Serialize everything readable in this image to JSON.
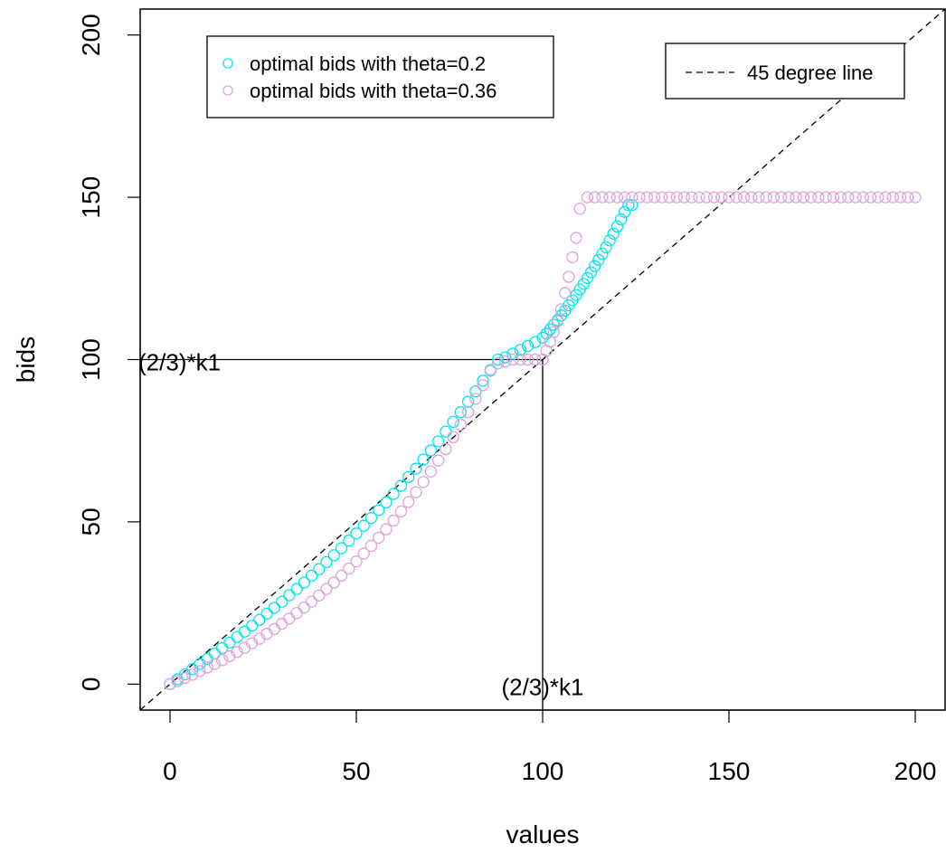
{
  "chart_data": {
    "type": "scatter",
    "xlabel": "values",
    "ylabel": "bids",
    "xlim": [
      -8,
      208
    ],
    "ylim": [
      -8,
      208
    ],
    "xticks": [
      0,
      50,
      100,
      150,
      200
    ],
    "yticks": [
      0,
      50,
      100,
      150,
      200
    ],
    "xtick_labels": [
      "0",
      "50",
      "100",
      "150",
      "200"
    ],
    "ytick_labels": [
      "0",
      "50",
      "100",
      "150",
      "200"
    ],
    "grid": false,
    "series": [
      {
        "name": "optimal bids with theta=0.2",
        "color": "#00e5ee",
        "marker": "open-circle",
        "x": [
          0,
          2,
          4,
          6,
          8,
          10,
          12,
          14,
          16,
          18,
          20,
          22,
          24,
          26,
          28,
          30,
          32,
          34,
          36,
          38,
          40,
          42,
          44,
          46,
          48,
          50,
          52,
          54,
          56,
          58,
          60,
          62,
          64,
          66,
          68,
          70,
          72,
          74,
          76,
          78,
          80,
          82,
          84,
          86,
          88,
          90,
          92,
          94,
          96,
          98,
          100,
          101,
          102,
          103,
          104,
          105,
          106,
          107,
          108,
          109,
          110,
          111,
          112,
          113,
          114,
          115,
          116,
          117,
          118,
          119,
          120,
          121,
          122,
          123,
          124
        ],
        "y": [
          0.0,
          1.5,
          3.0,
          4.6,
          6.2,
          7.8,
          9.4,
          11.1,
          12.8,
          14.5,
          16.2,
          18.0,
          19.8,
          21.7,
          23.5,
          25.4,
          27.4,
          29.3,
          31.3,
          33.4,
          35.4,
          37.6,
          39.7,
          41.9,
          44.2,
          46.4,
          48.8,
          51.2,
          53.6,
          56.0,
          58.6,
          61.1,
          63.8,
          66.4,
          69.2,
          72.0,
          74.8,
          77.8,
          80.8,
          83.8,
          87.0,
          90.2,
          93.5,
          96.8,
          100.0,
          100.7,
          101.8,
          103.0,
          104.2,
          105.4,
          106.7,
          108.0,
          109.3,
          110.7,
          112.1,
          113.6,
          115.1,
          116.7,
          118.3,
          119.9,
          121.6,
          123.3,
          125.1,
          126.9,
          128.8,
          130.7,
          132.6,
          134.6,
          136.7,
          138.8,
          141.0,
          143.2,
          145.5,
          147.6,
          147.6
        ],
        "x_note": ""
      },
      {
        "name": "optimal bids with theta=0.36",
        "color": "#dda0dd",
        "marker": "open-circle",
        "x": [
          0,
          2,
          4,
          6,
          8,
          10,
          12,
          14,
          16,
          18,
          20,
          22,
          24,
          26,
          28,
          30,
          32,
          34,
          36,
          38,
          40,
          42,
          44,
          46,
          48,
          50,
          52,
          54,
          56,
          58,
          60,
          62,
          64,
          66,
          68,
          70,
          72,
          74,
          76,
          78,
          80,
          82,
          84,
          86,
          88,
          90,
          92,
          94,
          96,
          98,
          100,
          101,
          102,
          103,
          104,
          105,
          106,
          107,
          108,
          109,
          110,
          112,
          114,
          116,
          118,
          120,
          122,
          124,
          126,
          128,
          130,
          132,
          134,
          136,
          138,
          140,
          142,
          144,
          146,
          148,
          150,
          152,
          154,
          156,
          158,
          160,
          162,
          164,
          166,
          168,
          170,
          172,
          174,
          176,
          178,
          180,
          182,
          184,
          186,
          188,
          190,
          192,
          194,
          196,
          198,
          200
        ],
        "y": [
          0.0,
          0.9,
          1.9,
          2.9,
          4.0,
          5.1,
          6.2,
          7.4,
          8.6,
          9.9,
          11.2,
          12.6,
          14.0,
          15.5,
          17.0,
          18.6,
          20.2,
          21.9,
          23.6,
          25.4,
          27.3,
          29.3,
          31.3,
          33.4,
          35.6,
          37.8,
          40.2,
          42.6,
          45.1,
          47.7,
          50.4,
          53.2,
          56.1,
          59.1,
          62.3,
          65.5,
          68.9,
          72.4,
          76.1,
          79.9,
          83.8,
          87.9,
          92.1,
          96.5,
          98.8,
          99.4,
          100.0,
          100.0,
          100.0,
          100.0,
          100.0,
          102.7,
          105.5,
          108.5,
          111.8,
          115.5,
          120.5,
          125.5,
          131.5,
          137.5,
          146.5,
          150,
          150,
          150,
          150,
          150,
          150,
          150,
          150,
          150,
          150,
          150,
          150,
          150,
          150,
          150,
          150,
          150,
          150,
          150,
          150,
          150,
          150,
          150,
          150,
          150,
          150,
          150,
          150,
          150,
          150,
          150,
          150,
          150,
          150,
          150,
          150,
          150,
          150,
          150,
          150,
          150,
          150,
          150,
          150,
          150
        ]
      }
    ],
    "reference_line": {
      "name": "45 degree line",
      "style": "dashed",
      "color": "#000000",
      "from": [
        -8,
        -8
      ],
      "to": [
        208,
        208
      ]
    },
    "segments": [
      {
        "from": [
          -8,
          100
        ],
        "to": [
          100,
          100
        ],
        "color": "#000000"
      },
      {
        "from": [
          100,
          100
        ],
        "to": [
          100,
          -8
        ],
        "color": "#000000"
      }
    ],
    "annotations": [
      {
        "text": "(2/3)*k1",
        "x": -8,
        "y": 100,
        "anchor": "y-label"
      },
      {
        "text": "(2/3)*k1",
        "x": 100,
        "y": 0,
        "anchor": "x-label"
      }
    ],
    "legends": [
      {
        "position": "top-left",
        "entries": [
          "optimal bids with theta=0.2",
          "optimal bids with theta=0.36"
        ]
      },
      {
        "position": "top-right",
        "entries": [
          "45 degree line"
        ]
      }
    ]
  }
}
